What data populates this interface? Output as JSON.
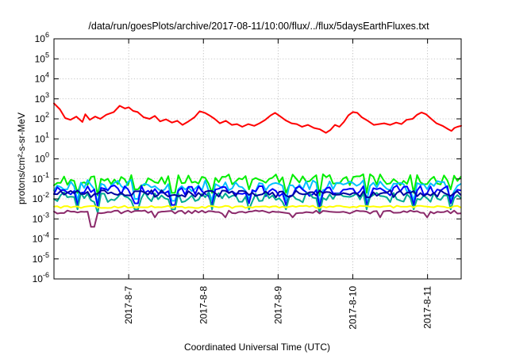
{
  "chart_data": {
    "type": "line",
    "title": "/data/run/goesPlots/archive/2017-08-11/10:00/flux/../flux/5daysEarthFluxes.txt",
    "xlabel": "Coordinated Universal Time (UTC)",
    "ylabel": "protons/cm²-s-sr-MeV",
    "yscale": "log",
    "ylim": [
      1e-06,
      1000000.0
    ],
    "xlim": [
      0,
      5.45
    ],
    "x_unit": "days after 2017-8-6 00:00 UTC",
    "grid": true,
    "y_ticks": [
      {
        "base": "10",
        "exp": "-6",
        "value": 1e-06
      },
      {
        "base": "10",
        "exp": "-5",
        "value": 1e-05
      },
      {
        "base": "10",
        "exp": "-4",
        "value": 0.0001
      },
      {
        "base": "10",
        "exp": "-3",
        "value": 0.001
      },
      {
        "base": "10",
        "exp": "-2",
        "value": 0.01
      },
      {
        "base": "10",
        "exp": "-1",
        "value": 0.1
      },
      {
        "base": "10",
        "exp": "0",
        "value": 1
      },
      {
        "base": "10",
        "exp": "1",
        "value": 10
      },
      {
        "base": "10",
        "exp": "2",
        "value": 100
      },
      {
        "base": "10",
        "exp": "3",
        "value": 1000
      },
      {
        "base": "10",
        "exp": "4",
        "value": 10000
      },
      {
        "base": "10",
        "exp": "5",
        "value": 100000
      },
      {
        "base": "10",
        "exp": "6",
        "value": 1000000
      }
    ],
    "x_ticks": [
      {
        "label": "2017-8-7",
        "x": 1
      },
      {
        "label": "2017-8-8",
        "x": 2
      },
      {
        "label": "2017-8-9",
        "x": 3
      },
      {
        "label": "2017-8-10",
        "x": 4
      },
      {
        "label": "2017-8-11",
        "x": 5
      }
    ],
    "series": [
      {
        "color": "#ff0000",
        "points": [
          [
            0,
            600
          ],
          [
            0.08,
            300
          ],
          [
            0.15,
            110
          ],
          [
            0.22,
            90
          ],
          [
            0.3,
            130
          ],
          [
            0.38,
            70
          ],
          [
            0.42,
            170
          ],
          [
            0.48,
            90
          ],
          [
            0.55,
            130
          ],
          [
            0.62,
            100
          ],
          [
            0.7,
            160
          ],
          [
            0.8,
            220
          ],
          [
            0.88,
            450
          ],
          [
            0.95,
            330
          ],
          [
            1.0,
            380
          ],
          [
            1.06,
            250
          ],
          [
            1.12,
            220
          ],
          [
            1.2,
            120
          ],
          [
            1.28,
            100
          ],
          [
            1.35,
            140
          ],
          [
            1.42,
            75
          ],
          [
            1.5,
            95
          ],
          [
            1.58,
            65
          ],
          [
            1.65,
            80
          ],
          [
            1.72,
            50
          ],
          [
            1.8,
            75
          ],
          [
            1.88,
            120
          ],
          [
            1.95,
            240
          ],
          [
            2.02,
            200
          ],
          [
            2.08,
            150
          ],
          [
            2.15,
            100
          ],
          [
            2.22,
            60
          ],
          [
            2.3,
            80
          ],
          [
            2.38,
            50
          ],
          [
            2.45,
            55
          ],
          [
            2.52,
            40
          ],
          [
            2.6,
            55
          ],
          [
            2.68,
            45
          ],
          [
            2.75,
            60
          ],
          [
            2.82,
            85
          ],
          [
            2.9,
            150
          ],
          [
            2.96,
            200
          ],
          [
            3.02,
            140
          ],
          [
            3.1,
            85
          ],
          [
            3.18,
            60
          ],
          [
            3.25,
            55
          ],
          [
            3.32,
            40
          ],
          [
            3.4,
            50
          ],
          [
            3.48,
            35
          ],
          [
            3.56,
            30
          ],
          [
            3.64,
            20
          ],
          [
            3.7,
            28
          ],
          [
            3.76,
            50
          ],
          [
            3.82,
            40
          ],
          [
            3.88,
            70
          ],
          [
            3.94,
            150
          ],
          [
            4.0,
            220
          ],
          [
            4.06,
            200
          ],
          [
            4.12,
            120
          ],
          [
            4.2,
            80
          ],
          [
            4.28,
            50
          ],
          [
            4.35,
            55
          ],
          [
            4.42,
            60
          ],
          [
            4.5,
            50
          ],
          [
            4.58,
            65
          ],
          [
            4.65,
            55
          ],
          [
            4.72,
            90
          ],
          [
            4.8,
            100
          ],
          [
            4.86,
            160
          ],
          [
            4.92,
            210
          ],
          [
            4.98,
            170
          ],
          [
            5.05,
            100
          ],
          [
            5.12,
            60
          ],
          [
            5.2,
            45
          ],
          [
            5.28,
            30
          ],
          [
            5.32,
            25
          ],
          [
            5.36,
            35
          ],
          [
            5.4,
            40
          ],
          [
            5.45,
            45
          ]
        ]
      },
      {
        "color": "#00ee00",
        "level": 0.09,
        "jitter": 0.28,
        "dips": [
          [
            0.3,
            0.02
          ],
          [
            0.6,
            0.015
          ],
          [
            1.1,
            0.03
          ],
          [
            1.6,
            0.02
          ],
          [
            2.1,
            0.02
          ],
          [
            2.6,
            0.03
          ],
          [
            3.1,
            0.02
          ],
          [
            3.55,
            0.015
          ],
          [
            4.2,
            0.02
          ],
          [
            4.8,
            0.02
          ],
          [
            5.3,
            0.03
          ]
        ]
      },
      {
        "color": "#00c0ff",
        "level": 0.045,
        "jitter": 0.3,
        "dips": [
          [
            0.3,
            0.008
          ],
          [
            0.6,
            0.006
          ],
          [
            1.1,
            0.01
          ],
          [
            1.6,
            0.008
          ],
          [
            2.1,
            0.008
          ],
          [
            2.6,
            0.01
          ],
          [
            3.1,
            0.008
          ],
          [
            3.55,
            0.006
          ],
          [
            4.2,
            0.008
          ],
          [
            4.8,
            0.008
          ],
          [
            5.3,
            0.01
          ]
        ]
      },
      {
        "color": "#0000ff",
        "level": 0.025,
        "jitter": 0.28,
        "dips": [
          [
            0.3,
            0.005
          ],
          [
            0.6,
            0.004
          ],
          [
            1.1,
            0.006
          ],
          [
            1.6,
            0.005
          ],
          [
            2.1,
            0.005
          ],
          [
            2.6,
            0.006
          ],
          [
            3.1,
            0.005
          ],
          [
            3.55,
            0.004
          ],
          [
            4.2,
            0.005
          ],
          [
            4.8,
            0.005
          ],
          [
            5.3,
            0.006
          ]
        ]
      },
      {
        "color": "#00aa90",
        "level": 0.012,
        "jitter": 0.26,
        "dips": [
          [
            0.3,
            0.003
          ],
          [
            0.6,
            0.002
          ],
          [
            1.1,
            0.003
          ],
          [
            1.6,
            0.003
          ],
          [
            2.1,
            0.003
          ],
          [
            2.6,
            0.003
          ],
          [
            3.1,
            0.003
          ],
          [
            3.55,
            0.002
          ],
          [
            4.2,
            0.003
          ],
          [
            4.8,
            0.003
          ],
          [
            5.3,
            0.003
          ]
        ]
      },
      {
        "color": "#0000a0",
        "level": 0.018,
        "jitter": 0.18,
        "dips": []
      },
      {
        "color": "#ffff00",
        "level": 0.004,
        "jitter": 0.06,
        "dips": []
      },
      {
        "color": "#8b2a6b",
        "level": 0.0022,
        "jitter": 0.08,
        "dips": [
          [
            0.52,
            0.0004
          ],
          [
            1.35,
            0.0012
          ],
          [
            2.3,
            0.0012
          ],
          [
            3.2,
            0.0012
          ],
          [
            4.35,
            0.0012
          ],
          [
            5.0,
            0.0012
          ]
        ]
      }
    ]
  }
}
